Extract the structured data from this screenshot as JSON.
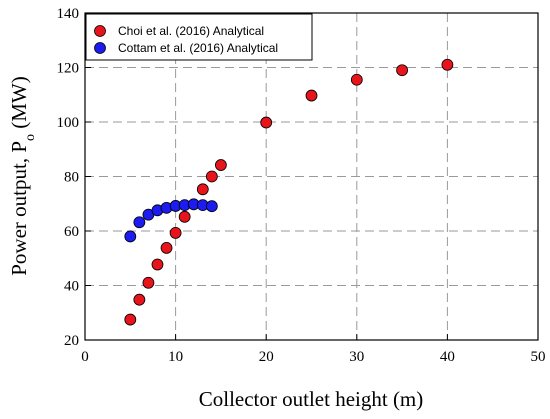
{
  "chart_data": {
    "type": "scatter",
    "xlabel": "Collector outlet height (m)",
    "ylabel_main": "Power output, P",
    "ylabel_sub": "o",
    "ylabel_unit": " (MW)",
    "xlim": [
      0,
      50
    ],
    "ylim": [
      20,
      140
    ],
    "xticks": [
      0,
      10,
      20,
      30,
      40,
      50
    ],
    "yticks": [
      20,
      40,
      60,
      80,
      100,
      120,
      140
    ],
    "grid": true,
    "legend_position": "top-left",
    "series": [
      {
        "name": "Choi et al. (2016) Analytical",
        "color": "#e8141b",
        "points": [
          [
            5,
            27.5
          ],
          [
            6,
            34.8
          ],
          [
            7,
            41
          ],
          [
            8,
            47.7
          ],
          [
            9,
            53.8
          ],
          [
            10,
            59.3
          ],
          [
            11,
            65.2
          ],
          [
            13,
            75.3
          ],
          [
            14,
            80
          ],
          [
            15,
            84.2
          ],
          [
            20,
            99.8
          ],
          [
            25,
            109.7
          ],
          [
            30,
            115.5
          ],
          [
            35,
            119
          ],
          [
            40,
            121
          ]
        ]
      },
      {
        "name": "Cottam et al. (2016) Analytical",
        "color": "#1c1cf0",
        "points": [
          [
            5,
            58
          ],
          [
            6,
            63.2
          ],
          [
            7,
            66
          ],
          [
            8,
            67.6
          ],
          [
            9,
            68.5
          ],
          [
            10,
            69.2
          ],
          [
            11,
            69.5
          ],
          [
            12,
            69.8
          ],
          [
            13,
            69.5
          ],
          [
            14,
            69.1
          ]
        ]
      }
    ]
  }
}
